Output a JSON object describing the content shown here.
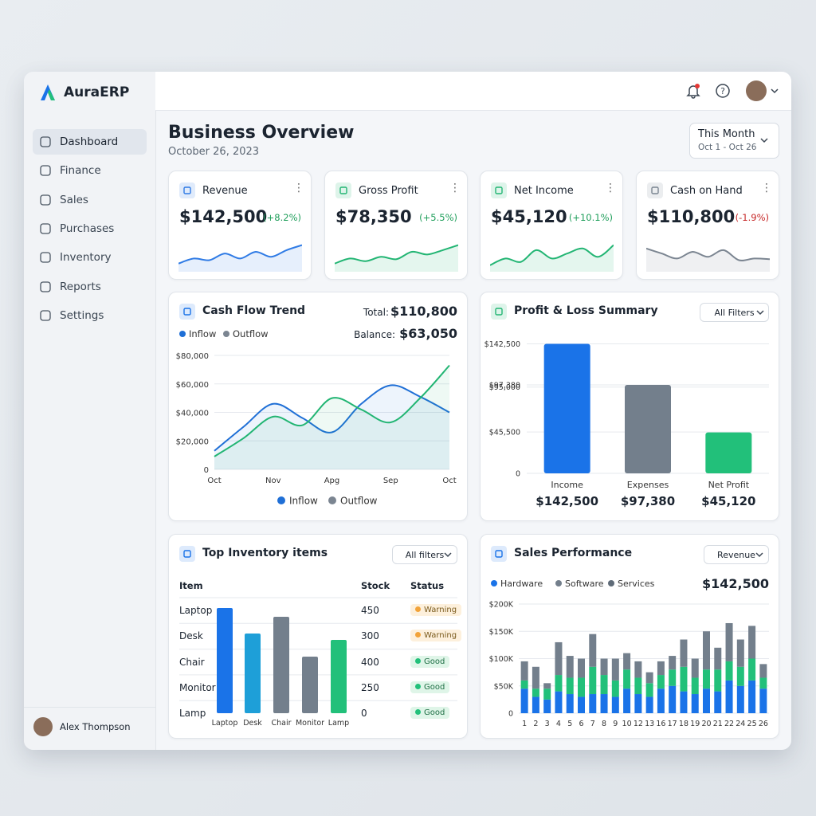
{
  "brand": "AuraERP",
  "nav": {
    "items": [
      "Dashboard",
      "Finance",
      "Sales",
      "Purchases",
      "Inventory",
      "Reports",
      "Settings"
    ],
    "active": 0
  },
  "user": {
    "name": "Alex Thompson"
  },
  "header": {
    "title": "Business Overview",
    "date": "October 26, 2023",
    "period": "This Month",
    "range": "Oct 1 - Oct 26"
  },
  "kpis": [
    {
      "label": "Revenue",
      "value": "$142,500",
      "change": "(+8.2%)",
      "change_color": "#1e9e5a",
      "color": "#2f7be5",
      "trend": [
        15,
        30,
        25,
        45,
        30,
        50,
        35,
        55,
        70
      ]
    },
    {
      "label": "Gross Profit",
      "value": "$78,350",
      "change": "(+5.5%)",
      "change_color": "#1e9e5a",
      "color": "#22b573",
      "trend": [
        15,
        30,
        22,
        35,
        28,
        50,
        42,
        55,
        70
      ]
    },
    {
      "label": "Net Income",
      "value": "$45,120",
      "change": "(+10.1%)",
      "change_color": "#1e9e5a",
      "color": "#22b573",
      "trend": [
        10,
        30,
        20,
        55,
        30,
        45,
        60,
        35,
        70
      ]
    },
    {
      "label": "Cash on Hand",
      "value": "$110,800",
      "change": "(-1.9%)",
      "change_color": "#c62828",
      "color": "#7b8591",
      "trend": [
        60,
        45,
        30,
        50,
        35,
        55,
        25,
        30,
        28
      ]
    }
  ],
  "cash_flow": {
    "title": "Cash Flow Trend",
    "total_label": "Total:",
    "total": "$110,800",
    "balance_label": "Balance:",
    "balance": "$63,050",
    "chart_data": {
      "type": "line",
      "categories": [
        "Oct",
        null,
        "Nov",
        null,
        "Apg",
        null,
        "Sep",
        null,
        "Oct"
      ],
      "series": [
        {
          "name": "Inflow",
          "color": "#1f6fd6",
          "legend_color": "#1f6fd6",
          "values": [
            13000,
            30000,
            46000,
            36000,
            26000,
            46000,
            59000,
            51000,
            40000
          ]
        },
        {
          "name": "Outflow",
          "color": "#22b573",
          "legend_color": "#7b8591",
          "values": [
            9000,
            22000,
            37000,
            31000,
            50000,
            42000,
            33000,
            50000,
            73000
          ]
        }
      ],
      "ylim": [
        0,
        80000
      ],
      "yticks": [
        0,
        {
          "value": 20000,
          "label": "$20,000"
        },
        {
          "value": 40000,
          "label": "$40,000"
        },
        {
          "value": 60000,
          "label": "$60,000"
        },
        {
          "value": 80000,
          "label": "$80,000"
        }
      ],
      "grid": true
    }
  },
  "pnl": {
    "title": "Profit & Loss Summary",
    "filter": "All Filters",
    "chart_data": {
      "type": "bar",
      "categories": [
        "Income",
        "Expenses",
        "Net Profit"
      ],
      "values": [
        142500,
        97380,
        45120
      ],
      "value_labels": [
        "$142,500",
        "$97,380",
        "$45,120"
      ],
      "colors": [
        "#1a73e8",
        "#737f8c",
        "#22c07a"
      ],
      "ylim": [
        0,
        150000
      ],
      "yticks": [
        0,
        {
          "value": 45500,
          "label": "$45,500"
        },
        {
          "value": 97380,
          "label": "$97,380"
        },
        {
          "value": 95000,
          "label": "$95,000"
        },
        {
          "value": 142500,
          "label": "$142,500"
        }
      ],
      "grid": true
    }
  },
  "inventory": {
    "title": "Top Inventory items",
    "filter": "All filters",
    "columns": [
      "Item",
      "Stock",
      "Status"
    ],
    "rows": [
      {
        "item": "Laptop",
        "stock": 450,
        "status": "Warning"
      },
      {
        "item": "Desk",
        "stock": 300,
        "status": "Warning"
      },
      {
        "item": "Chair",
        "stock": 400,
        "status": "Good"
      },
      {
        "item": "Monitor",
        "stock": 250,
        "status": "Good"
      },
      {
        "item": "Lamp",
        "stock": 0,
        "status": "Good"
      }
    ],
    "chart_data": {
      "type": "bar",
      "categories": [
        "Laptop",
        "Desk",
        "Chair",
        "Monitor",
        "Lamp"
      ],
      "values": [
        132,
        100,
        121,
        71,
        92
      ],
      "colors": [
        "#1a73e8",
        "#1e9fd8",
        "#737f8c",
        "#737f8c",
        "#22c07a"
      ]
    }
  },
  "sales": {
    "title": "Sales Performance",
    "filter": "Revenue",
    "total": "$142,500",
    "chart_data": {
      "type": "stacked_bar",
      "categories": [
        "1",
        "2",
        "3",
        "4",
        "5",
        "6",
        "7",
        "8",
        "9",
        "10",
        "12",
        "13",
        "16",
        "17",
        "18",
        "19",
        "20",
        "21",
        "22",
        "24",
        "25",
        "26"
      ],
      "series": [
        {
          "name": "Hardware",
          "color": "#1a73e8",
          "legend_color": "#1a73e8",
          "values": [
            45000,
            30000,
            25000,
            40000,
            35000,
            30000,
            35000,
            35000,
            30000,
            45000,
            35000,
            30000,
            45000,
            50000,
            40000,
            35000,
            45000,
            40000,
            60000,
            50000,
            60000,
            45000
          ]
        },
        {
          "name": "Software",
          "color": "#22c07a",
          "legend_color": "#737f8c",
          "values": [
            15000,
            15000,
            20000,
            30000,
            30000,
            35000,
            50000,
            35000,
            30000,
            35000,
            30000,
            25000,
            25000,
            30000,
            45000,
            30000,
            35000,
            40000,
            35000,
            35000,
            40000,
            20000
          ]
        },
        {
          "name": "Services",
          "color": "#737f8c",
          "legend_color": "#5f6b78",
          "values": [
            35000,
            40000,
            10000,
            60000,
            40000,
            35000,
            60000,
            30000,
            40000,
            30000,
            30000,
            20000,
            25000,
            25000,
            50000,
            35000,
            70000,
            40000,
            70000,
            50000,
            60000,
            25000
          ]
        }
      ],
      "ylim": [
        0,
        200000
      ],
      "yticks": [
        0,
        {
          "value": 50000,
          "label": "$50K"
        },
        {
          "value": 100000,
          "label": "$100K"
        },
        {
          "value": 150000,
          "label": "$150K"
        },
        {
          "value": 200000,
          "label": "$200K"
        }
      ],
      "grid": true
    }
  }
}
